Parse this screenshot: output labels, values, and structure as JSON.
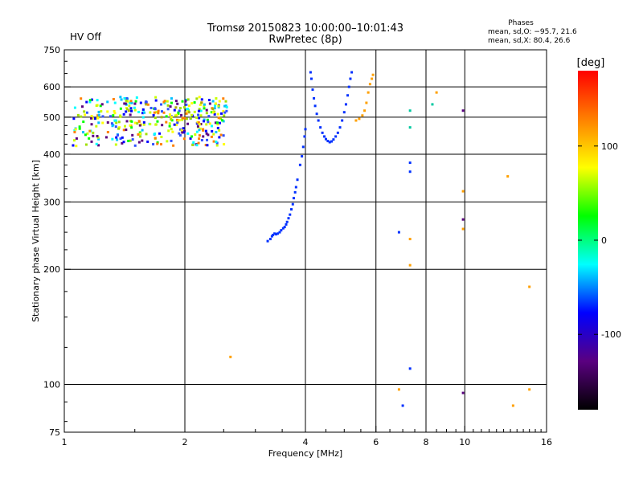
{
  "header": {
    "title_line1": "Tromsø 20150823 10:00:00–10:01:43",
    "title_line2": "RwPretec (8p)",
    "status": "HV Off",
    "status_color": "#cc0000",
    "phases_title": "Phases",
    "phases_o": "mean, sd,O: −95.7, 21.6",
    "phases_x": "mean, sd,X:  80.4, 26.6"
  },
  "chart_data": {
    "type": "scatter",
    "xlabel": "Frequency [MHz]",
    "ylabel": "Stationary phase Virtual Height [km]",
    "xscale": "log",
    "yscale": "log",
    "xlim": [
      1,
      16
    ],
    "ylim": [
      75,
      750
    ],
    "xticks": [
      1,
      2,
      4,
      6,
      8,
      10,
      16
    ],
    "yticks": [
      75,
      100,
      200,
      300,
      400,
      500,
      600,
      750
    ],
    "grid": true,
    "colorbar": {
      "label": "[deg]",
      "range": [
        -180,
        180
      ],
      "ticks": [
        100,
        0,
        -100
      ],
      "colors": [
        "#000000",
        "#5a0080",
        "#0000ff",
        "#00ffff",
        "#00ff00",
        "#ffff00",
        "#ff8000",
        "#ff0000"
      ]
    },
    "series": [
      {
        "color": "#0030ff",
        "points": [
          [
            3.22,
            237
          ],
          [
            3.27,
            240
          ],
          [
            3.3,
            244
          ],
          [
            3.32,
            246
          ],
          [
            3.35,
            248
          ],
          [
            3.38,
            247
          ],
          [
            3.41,
            248
          ],
          [
            3.45,
            250
          ],
          [
            3.48,
            253
          ],
          [
            3.52,
            256
          ],
          [
            3.55,
            258
          ],
          [
            3.58,
            262
          ],
          [
            3.6,
            266
          ],
          [
            3.63,
            272
          ],
          [
            3.66,
            278
          ],
          [
            3.69,
            287
          ],
          [
            3.72,
            296
          ],
          [
            3.74,
            307
          ],
          [
            3.77,
            318
          ],
          [
            3.79,
            328
          ],
          [
            3.82,
            343
          ],
          [
            3.88,
            375
          ],
          [
            3.92,
            395
          ],
          [
            3.95,
            418
          ],
          [
            3.98,
            445
          ],
          [
            4.0,
            465
          ],
          [
            4.12,
            655
          ],
          [
            4.14,
            630
          ],
          [
            4.17,
            590
          ],
          [
            4.2,
            560
          ],
          [
            4.23,
            535
          ],
          [
            4.27,
            510
          ],
          [
            4.31,
            490
          ],
          [
            4.36,
            470
          ],
          [
            4.41,
            455
          ],
          [
            4.46,
            445
          ],
          [
            4.5,
            438
          ],
          [
            4.55,
            433
          ],
          [
            4.6,
            430
          ],
          [
            4.65,
            432
          ],
          [
            4.7,
            437
          ],
          [
            4.76,
            445
          ],
          [
            4.82,
            455
          ],
          [
            4.88,
            470
          ],
          [
            4.94,
            490
          ],
          [
            5.0,
            515
          ],
          [
            5.05,
            540
          ],
          [
            5.1,
            570
          ],
          [
            5.14,
            600
          ],
          [
            5.18,
            630
          ],
          [
            5.22,
            655
          ],
          [
            7.3,
            380
          ],
          [
            7.3,
            360
          ],
          [
            7.3,
            110
          ],
          [
            6.85,
            250
          ],
          [
            7.0,
            88
          ]
        ]
      },
      {
        "color": "#ffa000",
        "points": [
          [
            5.35,
            490
          ],
          [
            5.45,
            495
          ],
          [
            5.55,
            505
          ],
          [
            5.62,
            520
          ],
          [
            5.68,
            545
          ],
          [
            5.74,
            580
          ],
          [
            5.8,
            610
          ],
          [
            5.86,
            630
          ],
          [
            5.9,
            645
          ],
          [
            7.3,
            240
          ],
          [
            7.3,
            205
          ],
          [
            6.85,
            97
          ],
          [
            9.9,
            320
          ],
          [
            9.9,
            255
          ],
          [
            8.5,
            580
          ],
          [
            12.8,
            350
          ],
          [
            14.5,
            180
          ],
          [
            14.5,
            97
          ],
          [
            13.2,
            88
          ],
          [
            2.6,
            118
          ]
        ]
      },
      {
        "color": "#00c8a0",
        "points": [
          [
            7.3,
            520
          ],
          [
            7.3,
            470
          ],
          [
            8.3,
            540
          ]
        ]
      },
      {
        "color": "#5a0080",
        "points": [
          [
            9.9,
            520
          ],
          [
            9.9,
            270
          ],
          [
            9.9,
            95
          ]
        ]
      },
      {
        "color": "#b0b000",
        "points": [
          [
            1.45,
            520
          ],
          [
            1.6,
            540
          ],
          [
            1.75,
            500
          ],
          [
            1.9,
            530
          ],
          [
            2.05,
            515
          ],
          [
            2.2,
            545
          ],
          [
            2.35,
            525
          ]
        ]
      }
    ],
    "cluster": {
      "x": [
        1.05,
        2.55
      ],
      "y": [
        420,
        565
      ],
      "count": 380,
      "colors": [
        "#0000ff",
        "#5a0080",
        "#00ffff",
        "#00ff00",
        "#ffff00",
        "#ff8000",
        "#3050ff",
        "#00c0ff",
        "#a0e000",
        "#c8ff00"
      ]
    }
  }
}
